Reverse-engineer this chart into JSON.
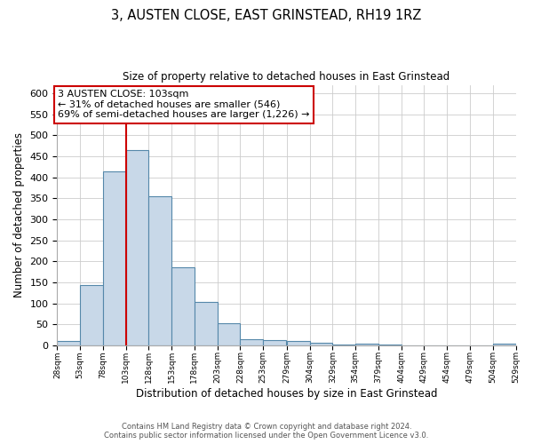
{
  "title": "3, AUSTEN CLOSE, EAST GRINSTEAD, RH19 1RZ",
  "subtitle": "Size of property relative to detached houses in East Grinstead",
  "xlabel": "Distribution of detached houses by size in East Grinstead",
  "ylabel": "Number of detached properties",
  "bin_edges": [
    28,
    53,
    78,
    103,
    128,
    153,
    178,
    203,
    228,
    253,
    279,
    304,
    329,
    354,
    379,
    404,
    429,
    454,
    479,
    504,
    529
  ],
  "bar_heights": [
    10,
    143,
    415,
    465,
    355,
    185,
    103,
    53,
    15,
    12,
    10,
    5,
    2,
    4,
    1,
    0,
    0,
    0,
    0,
    3
  ],
  "bar_color": "#c8d8e8",
  "bar_edge_color": "#5588aa",
  "vline_x": 103,
  "vline_color": "#cc0000",
  "annotation_text": "3 AUSTEN CLOSE: 103sqm\n← 31% of detached houses are smaller (546)\n69% of semi-detached houses are larger (1,226) →",
  "annotation_box_color": "#ffffff",
  "annotation_box_edge_color": "#cc0000",
  "ylim": [
    0,
    620
  ],
  "yticks": [
    0,
    50,
    100,
    150,
    200,
    250,
    300,
    350,
    400,
    450,
    500,
    550,
    600
  ],
  "background_color": "#ffffff",
  "grid_color": "#cccccc",
  "tick_labels": [
    "28sqm",
    "53sqm",
    "78sqm",
    "103sqm",
    "128sqm",
    "153sqm",
    "178sqm",
    "203sqm",
    "228sqm",
    "253sqm",
    "279sqm",
    "304sqm",
    "329sqm",
    "354sqm",
    "379sqm",
    "404sqm",
    "429sqm",
    "454sqm",
    "479sqm",
    "504sqm",
    "529sqm"
  ],
  "footer_line1": "Contains HM Land Registry data © Crown copyright and database right 2024.",
  "footer_line2": "Contains public sector information licensed under the Open Government Licence v3.0."
}
